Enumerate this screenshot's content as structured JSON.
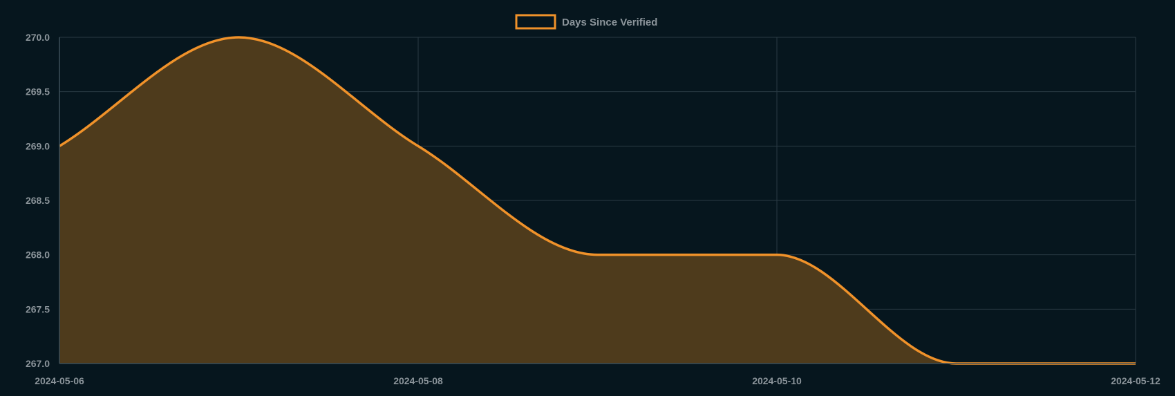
{
  "chart_data": {
    "type": "area",
    "legend": {
      "position": "top-center",
      "label": "Days Since Verified"
    },
    "series": [
      {
        "name": "Days Since Verified",
        "color": "#f0922a",
        "fill": "#4e3b1c",
        "x": [
          "2024-05-06",
          "2024-05-07",
          "2024-05-08",
          "2024-05-09",
          "2024-05-10",
          "2024-05-11",
          "2024-05-12"
        ],
        "y": [
          269,
          270,
          269,
          268,
          268,
          267,
          267
        ]
      }
    ],
    "x_ticks": [
      "2024-05-06",
      "2024-05-08",
      "2024-05-10",
      "2024-05-12"
    ],
    "y_ticks": [
      "270.0",
      "269.5",
      "269.0",
      "268.5",
      "268.0",
      "267.5",
      "267.0"
    ],
    "ylim": [
      267,
      270
    ],
    "xlim": [
      "2024-05-06",
      "2024-05-12"
    ],
    "grid": true
  },
  "colors": {
    "background": "#06161e",
    "grid": "#2a3b44",
    "tick_text": "#8b949a"
  }
}
